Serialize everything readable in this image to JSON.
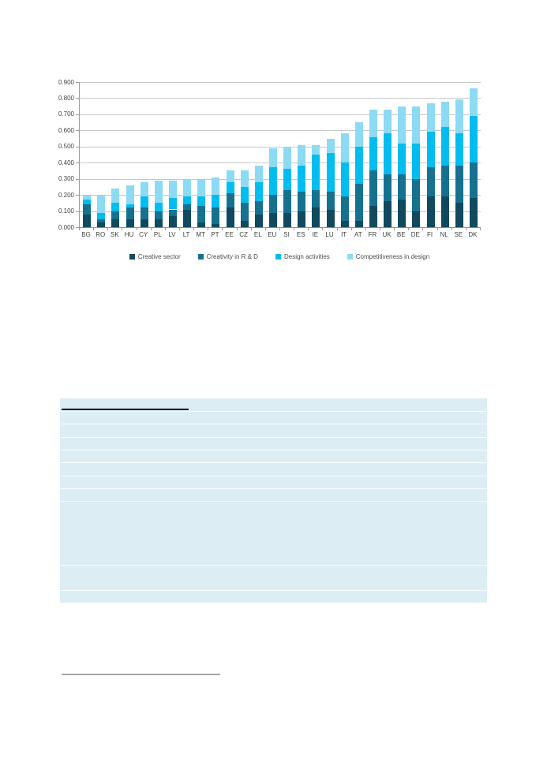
{
  "page": {
    "background": "#ffffff"
  },
  "chart_data": {
    "type": "bar",
    "stacked": true,
    "title": "",
    "xlabel": "",
    "ylabel": "",
    "ylim": [
      0,
      0.9
    ],
    "ytick_step": 0.1,
    "ytick_labels": [
      "0.000",
      "0.100",
      "0.200",
      "0.300",
      "0.400",
      "0.500",
      "0.600",
      "0.700",
      "0.800",
      "0.900"
    ],
    "grid": true,
    "legend_position": "bottom",
    "categories": [
      "BG",
      "RO",
      "SK",
      "HU",
      "CY",
      "PL",
      "LV",
      "LT",
      "MT",
      "PT",
      "EE",
      "CZ",
      "EL",
      "EU",
      "SI",
      "ES",
      "IE",
      "LU",
      "IT",
      "AT",
      "FR",
      "UK",
      "BE",
      "DE",
      "FI",
      "NL",
      "SE",
      "DK"
    ],
    "series": [
      {
        "name": "Creative sector",
        "color": "#11495e",
        "values": [
          0.08,
          0.03,
          0.05,
          0.05,
          0.05,
          0.05,
          0.07,
          0.11,
          0.03,
          0.02,
          0.12,
          0.04,
          0.08,
          0.09,
          0.09,
          0.1,
          0.12,
          0.11,
          0.04,
          0.04,
          0.13,
          0.16,
          0.17,
          0.1,
          0.19,
          0.19,
          0.15,
          0.18
        ]
      },
      {
        "name": "Creativity in R & D",
        "color": "#16718f",
        "values": [
          0.06,
          0.02,
          0.05,
          0.07,
          0.07,
          0.05,
          0.04,
          0.03,
          0.1,
          0.1,
          0.09,
          0.11,
          0.08,
          0.11,
          0.14,
          0.12,
          0.11,
          0.11,
          0.15,
          0.23,
          0.22,
          0.17,
          0.16,
          0.2,
          0.18,
          0.19,
          0.23,
          0.22
        ]
      },
      {
        "name": "Design activities",
        "color": "#00bdf0",
        "values": [
          0.03,
          0.04,
          0.05,
          0.02,
          0.07,
          0.05,
          0.07,
          0.05,
          0.06,
          0.08,
          0.07,
          0.1,
          0.12,
          0.17,
          0.13,
          0.16,
          0.22,
          0.24,
          0.21,
          0.23,
          0.21,
          0.25,
          0.19,
          0.22,
          0.22,
          0.24,
          0.2,
          0.29
        ]
      },
      {
        "name": "Competitiveness in design",
        "color": "#8cdaf4",
        "values": [
          0.03,
          0.11,
          0.09,
          0.12,
          0.09,
          0.14,
          0.11,
          0.11,
          0.11,
          0.11,
          0.07,
          0.1,
          0.1,
          0.12,
          0.14,
          0.13,
          0.06,
          0.09,
          0.18,
          0.15,
          0.17,
          0.15,
          0.23,
          0.23,
          0.18,
          0.16,
          0.21,
          0.17
        ]
      }
    ],
    "totals": [
      0.2,
      0.2,
      0.24,
      0.26,
      0.28,
      0.29,
      0.29,
      0.3,
      0.3,
      0.31,
      0.35,
      0.35,
      0.38,
      0.49,
      0.5,
      0.51,
      0.51,
      0.55,
      0.58,
      0.65,
      0.73,
      0.73,
      0.75,
      0.75,
      0.77,
      0.78,
      0.79,
      0.86
    ]
  },
  "table_block": {
    "background": "#dceef3",
    "separator_color": "rgba(255,255,255,0.8)",
    "heading_rule_color": "#000000"
  },
  "footnote": {
    "rule_color": "#a6a6a6"
  }
}
